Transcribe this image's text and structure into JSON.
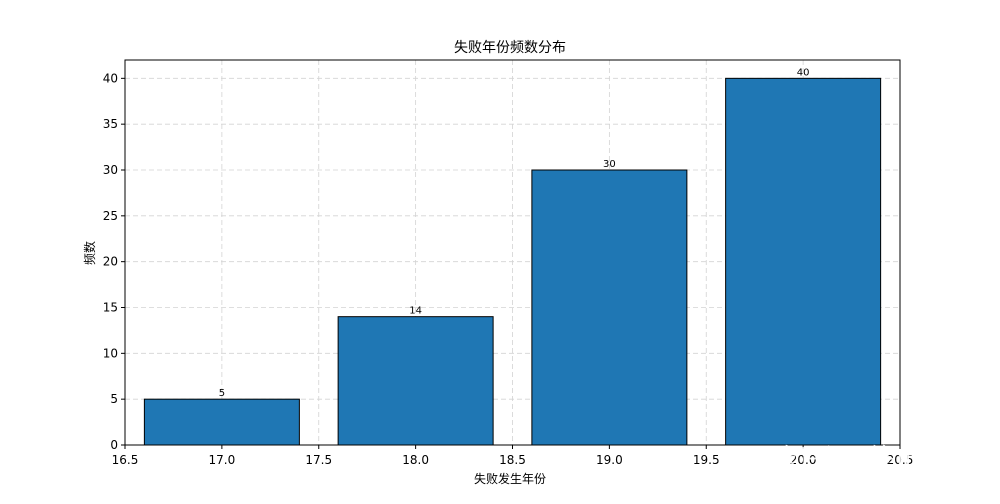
{
  "chart_data": {
    "type": "bar",
    "title": "失败年份频数分布",
    "xlabel": "失败发生年份",
    "ylabel": "频数",
    "x": [
      17.0,
      18.0,
      19.0,
      20.0
    ],
    "values": [
      5,
      14,
      30,
      40
    ],
    "data_labels": [
      "5",
      "14",
      "30",
      "40"
    ],
    "bar_width": 0.8,
    "xlim": [
      16.5,
      20.5
    ],
    "ylim": [
      0,
      42
    ],
    "xticks": [
      16.5,
      17.0,
      17.5,
      18.0,
      18.5,
      19.0,
      19.5,
      20.0,
      20.5
    ],
    "xtick_labels": [
      "16.5",
      "17.0",
      "17.5",
      "18.0",
      "18.5",
      "19.0",
      "19.5",
      "20.0",
      "20.5"
    ],
    "yticks": [
      0,
      5,
      10,
      15,
      20,
      25,
      30,
      35,
      40
    ],
    "ytick_labels": [
      "0",
      "5",
      "10",
      "15",
      "20",
      "25",
      "30",
      "35",
      "40"
    ],
    "grid": true,
    "bar_color": "#1f77b4",
    "edge_color": "#000000",
    "grid_color": "#d3d3d3"
  },
  "watermark": {
    "text": "知乎 @终止进程"
  }
}
